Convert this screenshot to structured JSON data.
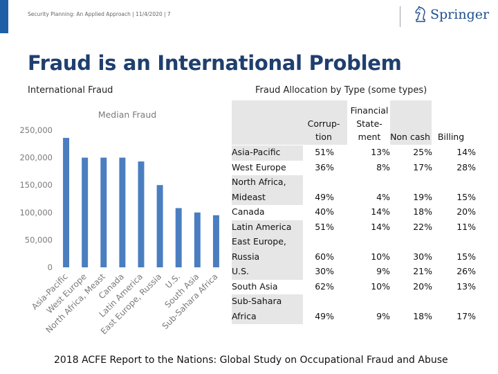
{
  "header": {
    "text": "Security Planning: An Applied Approach | 11/4/2020 | 7",
    "logo_text": "Springer",
    "logo_icon": "springer-chess-knight-icon"
  },
  "slide": {
    "title": "Fraud is an International Problem",
    "left_subtitle": "International Fraud",
    "right_subtitle": "Fraud Allocation by Type (some types)"
  },
  "chart_data": {
    "type": "bar",
    "title": "Median Fraud",
    "categories": [
      "Asia-Pacific",
      "West Europe",
      "North Africa, Meast",
      "Canada",
      "Latin America",
      "East Europe, Russia",
      "U.S.",
      "South Asia",
      "Sub-Sahara Africa"
    ],
    "values": [
      236000,
      200000,
      200000,
      200000,
      193000,
      150000,
      108000,
      100000,
      95000
    ],
    "ylim": [
      0,
      250000
    ],
    "yticks": [
      0,
      50000,
      100000,
      150000,
      200000,
      250000
    ],
    "ytick_labels": [
      "0",
      "50,000",
      "100,000",
      "150,000",
      "200,000",
      "250,000"
    ],
    "grid": false,
    "color": "#4a7ec0"
  },
  "table": {
    "columns": [
      [
        "Corrup-",
        "tion"
      ],
      [
        "Financial",
        "State-",
        "ment"
      ],
      [
        "Non cash"
      ],
      [
        "Billing"
      ]
    ],
    "rows": [
      {
        "region": [
          "Asia-Pacific"
        ],
        "values": [
          "51%",
          "13%",
          "25%",
          "14%"
        ]
      },
      {
        "region": [
          "West Europe"
        ],
        "values": [
          "36%",
          "8%",
          "17%",
          "28%"
        ]
      },
      {
        "region": [
          "North Africa,",
          "Mideast"
        ],
        "values": [
          "49%",
          "4%",
          "19%",
          "15%"
        ]
      },
      {
        "region": [
          "Canada"
        ],
        "values": [
          "40%",
          "14%",
          "18%",
          "20%"
        ]
      },
      {
        "region": [
          "Latin America"
        ],
        "values": [
          "51%",
          "14%",
          "22%",
          "11%"
        ]
      },
      {
        "region": [
          "East Europe,",
          "Russia"
        ],
        "values": [
          "60%",
          "10%",
          "30%",
          "15%"
        ]
      },
      {
        "region": [
          "U.S."
        ],
        "values": [
          "30%",
          "9%",
          "21%",
          "26%"
        ]
      },
      {
        "region": [
          "South Asia"
        ],
        "values": [
          "62%",
          "10%",
          "20%",
          "13%"
        ]
      },
      {
        "region": [
          "Sub-Sahara",
          "Africa"
        ],
        "values": [
          "49%",
          "9%",
          "18%",
          "17%"
        ]
      }
    ]
  },
  "footer": {
    "source": "2018 ACFE Report to the Nations: Global Study on Occupational Fraud and Abuse"
  }
}
